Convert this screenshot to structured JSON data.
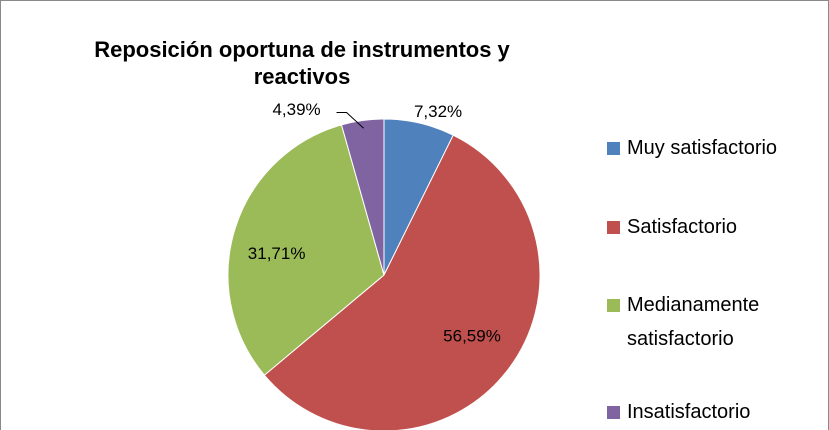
{
  "chart_data": {
    "type": "pie",
    "title": "Reposición oportuna de instrumentos y reactivos",
    "categories": [
      "Muy satisfactorio",
      "Satisfactorio",
      "Medianamente satisfactorio",
      "Insatisfactorio"
    ],
    "values": [
      7.32,
      56.59,
      31.71,
      4.39
    ],
    "value_labels": [
      "7,32%",
      "56,59%",
      "31,71%",
      "4,39%"
    ],
    "colors": [
      "#4f81bd",
      "#c0504d",
      "#9bbb59",
      "#8064a2"
    ],
    "legend": "right"
  }
}
